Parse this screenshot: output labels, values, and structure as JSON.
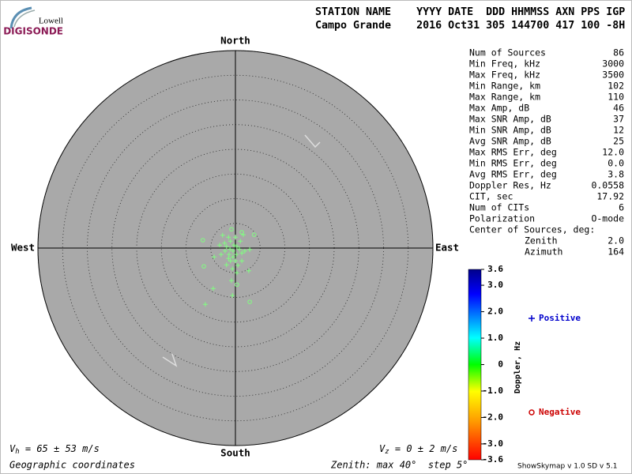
{
  "logo": {
    "top": "Lowell",
    "bottom": "DIGISONDE"
  },
  "header": {
    "line1": "STATION NAME    YYYY DATE  DDD HHMMSS AXN PPS IGP",
    "line2": "Campo Grande    2016 Oct31 305 144700 417 100 -8H"
  },
  "chart_data": {
    "type": "polar-scatter",
    "directions": {
      "north": "North",
      "south": "South",
      "east": "East",
      "west": "West"
    },
    "rlim": [
      0,
      40
    ],
    "rticks": [
      5,
      10,
      15,
      20,
      25,
      30,
      35,
      40
    ],
    "series": [
      {
        "name": "Positive",
        "marker": "plus",
        "color": "#80ff80",
        "legend_color": "#0000cc",
        "x": [
          -1.4,
          -1.0,
          -0.3,
          0.3,
          -2.1,
          -1.3,
          -0.5,
          0.0,
          0.8,
          1.3,
          1.9,
          -2.9,
          -1.8,
          -0.6,
          0.3,
          -3.2,
          -4.3,
          2.7,
          -6.1,
          -0.6,
          -2.6,
          1.0,
          0.0,
          -1.1,
          -0.5,
          0.2,
          -1.8,
          -1.0,
          1.3,
          -4.5,
          2.9,
          1.6,
          -0.8,
          -2.2,
          0.5,
          -1.4
        ],
        "values": [
          2.2,
          1.4,
          0.6,
          0.3,
          -0.6,
          -1.3,
          -1.8,
          -2.6,
          -0.2,
          -1.0,
          -0.6,
          -1.3,
          -3.4,
          -4.2,
          -5.0,
          0.6,
          -1.8,
          -4.6,
          -11.4,
          -9.6,
          2.6,
          1.4,
          2.2,
          -0.2,
          -0.6,
          -1.3,
          0.3,
          -2.6,
          -2.6,
          -8.2,
          -0.3,
          2.7,
          -6.6,
          1.0,
          -3.5,
          -2.1
        ]
      },
      {
        "name": "Negative",
        "marker": "circle",
        "color": "#80ff80",
        "legend_color": "#cc0000",
        "x": [
          -6.6,
          3.8,
          2.9,
          -6.4,
          1.3,
          -0.8,
          0.3
        ],
        "values": [
          1.6,
          2.7,
          -10.9,
          -3.7,
          3.2,
          3.8,
          -7.4
        ]
      }
    ],
    "colorbar": {
      "label": "Doppler, Hz",
      "lim": [
        -3.6,
        3.6
      ],
      "ticks": [
        3.6,
        {
          "value": 3,
          "label": "3.0"
        },
        {
          "value": 2,
          "label": "2.0"
        },
        {
          "value": 1,
          "label": "1.0"
        },
        0,
        {
          "value": -1,
          "label": "-1.0"
        },
        {
          "value": -2,
          "label": "-2.0"
        },
        {
          "value": -3,
          "label": "-3.0"
        },
        -3.6
      ]
    }
  },
  "stats": {
    "rows": [
      [
        "Num of Sources",
        "86"
      ],
      [
        "Min Freq, kHz",
        "3000"
      ],
      [
        "Max Freq, kHz",
        "3500"
      ],
      [
        "Min Range, km",
        "102"
      ],
      [
        "Max Range, km",
        "110"
      ],
      [
        "Max Amp, dB",
        "46"
      ],
      [
        "Max SNR Amp, dB",
        "37"
      ],
      [
        "Min SNR Amp, dB",
        "12"
      ],
      [
        "Avg SNR Amp, dB",
        "25"
      ],
      [
        "Max RMS Err, deg",
        "12.0"
      ],
      [
        "Min RMS Err, deg",
        "0.0"
      ],
      [
        "Avg RMS Err, deg",
        "3.8"
      ],
      [
        "Doppler Res, Hz",
        "0.0558"
      ],
      [
        "CIT, sec",
        "17.92"
      ],
      [
        "Num of CITs",
        "6"
      ],
      [
        "Polarization",
        "O-mode"
      ]
    ],
    "center": {
      "title": "Center of Sources, deg:",
      "rows": [
        [
          "Zenith",
          "2.0"
        ],
        [
          "Azimuth",
          "164"
        ]
      ]
    }
  },
  "footer": {
    "vh": {
      "symbol": "V",
      "sub": "h",
      "text": " = 65 ± 53 m/s"
    },
    "vz": {
      "symbol": "V",
      "sub": "z",
      "text": " = 0 ± 2 m/s"
    },
    "coords": "Geographic coordinates",
    "zenith": "Zenith: max 40°  step 5°",
    "version": "ShowSkymap v 1.0  SD v 5.1"
  }
}
